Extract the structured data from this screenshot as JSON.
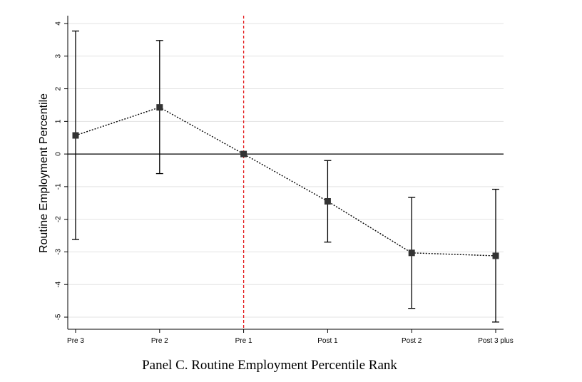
{
  "caption": "Panel C. Routine Employment Percentile Rank",
  "chart_data": {
    "type": "scatter",
    "title": "",
    "xlabel": "",
    "ylabel": "Routine Employment Percentile",
    "categories": [
      "Pre 3",
      "Pre 2",
      "Pre 1",
      "Post 1",
      "Post 2",
      "Post 3 plus"
    ],
    "ylim": [
      -5.4,
      4.2
    ],
    "yticks": [
      4,
      3,
      2,
      1,
      0,
      -1,
      -2,
      -3,
      -4,
      -5
    ],
    "grid": true,
    "series": [
      {
        "values": [
          0.57,
          1.43,
          0.0,
          -1.45,
          -3.03,
          -3.12
        ],
        "ci_lower": [
          -2.62,
          -0.6,
          0.0,
          -2.7,
          -4.73,
          -5.15
        ],
        "ci_upper": [
          3.77,
          3.48,
          0.0,
          -0.2,
          -1.33,
          -1.08
        ],
        "marker": "square",
        "line_style": "dotted",
        "color": "#333333"
      }
    ],
    "reference_lines": [
      {
        "axis": "y",
        "value": 0,
        "style": "solid",
        "color": "#000000"
      },
      {
        "axis": "x",
        "category": "Pre 1",
        "style": "dashed",
        "color": "#e41a1c"
      }
    ]
  }
}
